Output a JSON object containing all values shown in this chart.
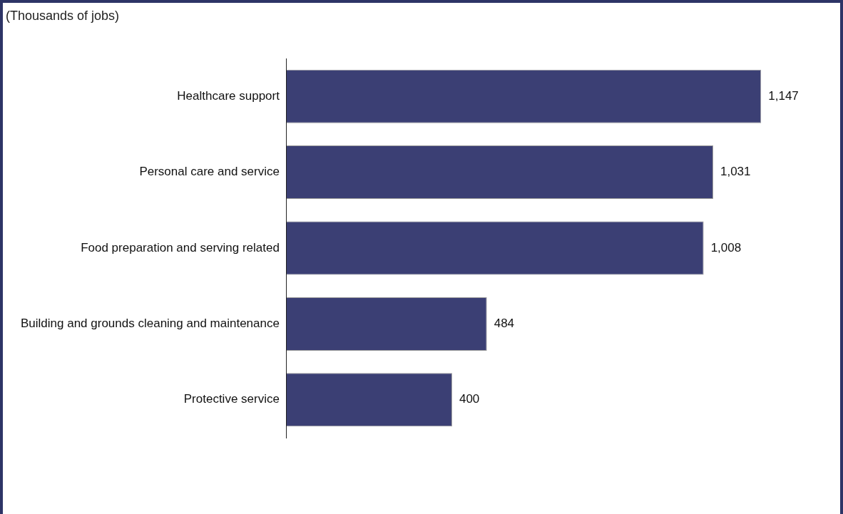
{
  "chart_data": {
    "type": "bar",
    "orientation": "horizontal",
    "title": "(Thousands of jobs)",
    "categories": [
      "Healthcare support",
      "Personal care and service",
      "Food preparation and serving related",
      "Building and grounds cleaning and maintenance",
      "Protective service"
    ],
    "values": [
      1147,
      1031,
      1008,
      484,
      400
    ],
    "value_labels": [
      "1,147",
      "1,031",
      "1,008",
      "484",
      "400"
    ],
    "color": "#3b3f74",
    "legend": false
  }
}
